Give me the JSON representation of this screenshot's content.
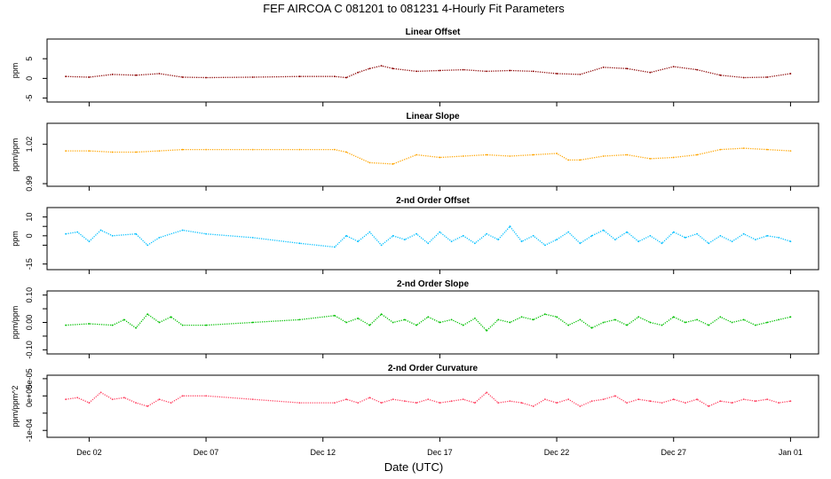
{
  "chart_data": {
    "title": "FEF   AIRCOA C   081201 to 081231   4-Hourly Fit Parameters",
    "xlabel": "Date (UTC)",
    "x_ticks": [
      "Dec 02",
      "Dec 07",
      "Dec 12",
      "Dec 17",
      "Dec 22",
      "Dec 27",
      "Jan 01"
    ],
    "x_tick_days": [
      1,
      6,
      11,
      16,
      21,
      26,
      31
    ],
    "xlim": [
      -0.8,
      32.2
    ],
    "panels": [
      {
        "type": "line",
        "title": "Linear Offset",
        "ylabel": "ppm",
        "color": "#8b0000",
        "ylim": [
          -6,
          10
        ],
        "yticks": [
          -5,
          0,
          5
        ],
        "ytick_labels": [
          "-5",
          "0",
          "5"
        ],
        "x": [
          0,
          1,
          2,
          3,
          4,
          5,
          6,
          8,
          10,
          11.5,
          12,
          12.5,
          13,
          13.5,
          14,
          15,
          16,
          17,
          18,
          19,
          20,
          21,
          22,
          23,
          24,
          25,
          26,
          27,
          28,
          29,
          30,
          31
        ],
        "values": [
          0.5,
          0.3,
          1.0,
          0.8,
          1.2,
          0.3,
          0.2,
          0.3,
          0.5,
          0.5,
          0.2,
          1.5,
          2.5,
          3.2,
          2.5,
          1.8,
          2.0,
          2.2,
          1.8,
          2.0,
          1.8,
          1.2,
          1.0,
          2.8,
          2.5,
          1.5,
          3.0,
          2.2,
          0.8,
          0.2,
          0.3,
          1.2
        ]
      },
      {
        "type": "line",
        "title": "Linear Slope",
        "ylabel": "ppm/ppm",
        "color": "#ffa500",
        "ylim": [
          0.988,
          1.036
        ],
        "yticks": [
          0.99,
          1.02
        ],
        "ytick_labels": [
          "0.99",
          "1.02"
        ],
        "x": [
          0,
          1,
          2,
          3,
          4,
          5,
          6,
          8,
          10,
          11.5,
          12,
          13,
          14,
          15,
          16,
          17,
          18,
          19,
          20,
          21,
          21.5,
          22,
          23,
          24,
          25,
          26,
          27,
          28,
          29,
          30,
          31
        ],
        "values": [
          1.015,
          1.015,
          1.014,
          1.014,
          1.015,
          1.016,
          1.016,
          1.016,
          1.016,
          1.016,
          1.014,
          1.006,
          1.005,
          1.012,
          1.01,
          1.011,
          1.012,
          1.011,
          1.012,
          1.013,
          1.008,
          1.008,
          1.011,
          1.012,
          1.009,
          1.01,
          1.012,
          1.016,
          1.017,
          1.016,
          1.015
        ]
      },
      {
        "type": "line",
        "title": "2-nd Order Offset",
        "ylabel": "ppm",
        "color": "#00bfff",
        "ylim": [
          -18,
          15
        ],
        "yticks": [
          -15,
          -5,
          0,
          5,
          10
        ],
        "ytick_labels": [
          "-15",
          "",
          "0",
          "",
          "10"
        ],
        "x": [
          0,
          0.5,
          1,
          1.5,
          2,
          3,
          3.5,
          4,
          5,
          6,
          8,
          10,
          11.5,
          12,
          12.5,
          13,
          13.5,
          14,
          14.5,
          15,
          15.5,
          16,
          16.5,
          17,
          17.5,
          18,
          18.5,
          19,
          19.5,
          20,
          20.5,
          21,
          21.5,
          22,
          22.5,
          23,
          23.5,
          24,
          24.5,
          25,
          25.5,
          26,
          26.5,
          27,
          27.5,
          28,
          28.5,
          29,
          29.5,
          30,
          30.5,
          31
        ],
        "values": [
          1,
          2,
          -3,
          3,
          0,
          1,
          -5,
          -1,
          3,
          1,
          -1,
          -4,
          -6,
          0,
          -3,
          2,
          -5,
          0,
          -2,
          1,
          -4,
          2,
          -3,
          0,
          -4,
          1,
          -2,
          5,
          -3,
          0,
          -5,
          -2,
          2,
          -4,
          0,
          3,
          -2,
          2,
          -3,
          0,
          -4,
          2,
          -1,
          1,
          -4,
          0,
          -3,
          1,
          -2,
          0,
          -1,
          -3
        ]
      },
      {
        "type": "line",
        "title": "2-nd Order Slope",
        "ylabel": "ppm/ppm",
        "color": "#00c000",
        "ylim": [
          -0.115,
          0.115
        ],
        "yticks": [
          -0.1,
          -0.05,
          0.0,
          0.05,
          0.1
        ],
        "ytick_labels": [
          "-0.10",
          "",
          "0.00",
          "",
          "0.10"
        ],
        "x": [
          0,
          1,
          2,
          2.5,
          3,
          3.5,
          4,
          4.5,
          5,
          6,
          8,
          10,
          11.5,
          12,
          12.5,
          13,
          13.5,
          14,
          14.5,
          15,
          15.5,
          16,
          16.5,
          17,
          17.5,
          18,
          18.5,
          19,
          19.5,
          20,
          20.5,
          21,
          21.5,
          22,
          22.5,
          23,
          23.5,
          24,
          24.5,
          25,
          25.5,
          26,
          26.5,
          27,
          27.5,
          28,
          28.5,
          29,
          29.5,
          30,
          30.5,
          31
        ],
        "values": [
          -0.01,
          -0.005,
          -0.01,
          0.01,
          -0.02,
          0.03,
          0.0,
          0.02,
          -0.01,
          -0.01,
          0.0,
          0.01,
          0.025,
          0.0,
          0.015,
          -0.01,
          0.03,
          0.0,
          0.01,
          -0.01,
          0.02,
          0.0,
          0.01,
          -0.01,
          0.015,
          -0.03,
          0.01,
          0.0,
          0.02,
          0.01,
          0.03,
          0.02,
          -0.01,
          0.01,
          -0.02,
          0.0,
          0.01,
          -0.01,
          0.02,
          0.0,
          -0.01,
          0.02,
          0.0,
          0.01,
          -0.01,
          0.02,
          0.0,
          0.01,
          -0.01,
          0.0,
          0.01,
          0.02
        ]
      },
      {
        "type": "line",
        "title": "2-nd Order Curvature",
        "ylabel": "ppm/ppm^2",
        "color": "#ff4060",
        "ylim": [
          -0.00012,
          6e-05
        ],
        "yticks": [
          -0.0001,
          -5e-05,
          0.0,
          5e-05
        ],
        "ytick_labels": [
          "-1e-04",
          "",
          "0e+00",
          "5e-05"
        ],
        "x": [
          0,
          0.5,
          1,
          1.5,
          2,
          2.5,
          3,
          3.5,
          4,
          4.5,
          5,
          6,
          8,
          10,
          11.5,
          12,
          12.5,
          13,
          13.5,
          14,
          14.5,
          15,
          15.5,
          16,
          16.5,
          17,
          17.5,
          18,
          18.5,
          19,
          19.5,
          20,
          20.5,
          21,
          21.5,
          22,
          22.5,
          23,
          23.5,
          24,
          24.5,
          25,
          25.5,
          26,
          26.5,
          27,
          27.5,
          28,
          28.5,
          29,
          29.5,
          30,
          30.5,
          31
        ],
        "values": [
          -1e-05,
          -5e-06,
          -2e-05,
          1e-05,
          -1e-05,
          -5e-06,
          -2e-05,
          -3e-05,
          -1e-05,
          -2e-05,
          0.0,
          0.0,
          -1e-05,
          -2e-05,
          -2e-05,
          -1e-05,
          -2e-05,
          -5e-06,
          -2e-05,
          -1e-05,
          -1.5e-05,
          -2e-05,
          -1e-05,
          -2e-05,
          -1.5e-05,
          -1e-05,
          -2e-05,
          1e-05,
          -2e-05,
          -1.5e-05,
          -2e-05,
          -3e-05,
          -1e-05,
          -2e-05,
          -1e-05,
          -3e-05,
          -1.5e-05,
          -1e-05,
          0.0,
          -2e-05,
          -1e-05,
          -1.5e-05,
          -2e-05,
          -1e-05,
          -2e-05,
          -1e-05,
          -3e-05,
          -1.5e-05,
          -2e-05,
          -1e-05,
          -1.5e-05,
          -1e-05,
          -2e-05,
          -1.5e-05
        ]
      }
    ]
  }
}
